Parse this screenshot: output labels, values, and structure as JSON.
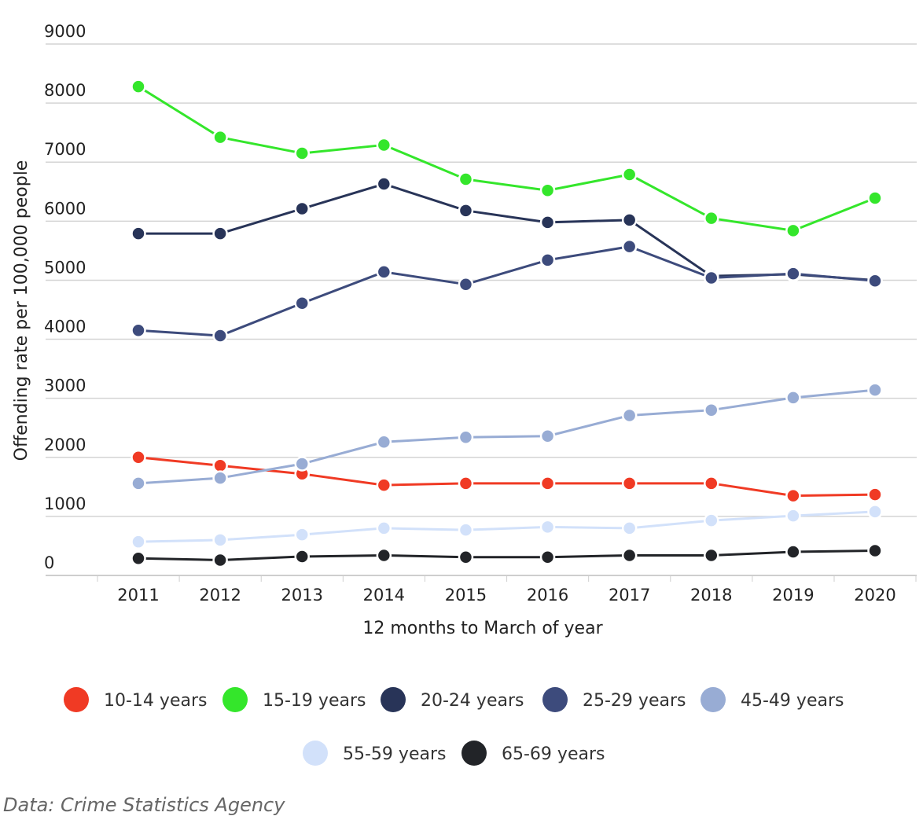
{
  "chart_data": {
    "type": "line",
    "x": [
      2011,
      2012,
      2013,
      2014,
      2015,
      2016,
      2017,
      2018,
      2019,
      2020
    ],
    "xlabel": "12 months to March of year",
    "ylabel": "Offending rate per 100,000 people",
    "ylim": [
      0,
      9000
    ],
    "yticks": [
      0,
      1000,
      2000,
      3000,
      4000,
      5000,
      6000,
      7000,
      8000,
      9000
    ],
    "grid": true,
    "legend_position": "bottom",
    "series": [
      {
        "name": "10-14 years",
        "color": "#f03a24",
        "values": [
          2000,
          1860,
          1720,
          1530,
          1560,
          1560,
          1560,
          1560,
          1350,
          1370
        ]
      },
      {
        "name": "15-19 years",
        "color": "#34e62b",
        "values": [
          8280,
          7420,
          7150,
          7290,
          6710,
          6520,
          6790,
          6050,
          5840,
          6390
        ]
      },
      {
        "name": "20-24 years",
        "color": "#283458",
        "values": [
          5790,
          5790,
          6210,
          6630,
          6180,
          5980,
          6020,
          5070,
          5100,
          5000
        ]
      },
      {
        "name": "25-29 years",
        "color": "#3d4b7c",
        "values": [
          4150,
          4060,
          4610,
          5140,
          4930,
          5340,
          5570,
          5040,
          5110,
          4990
        ]
      },
      {
        "name": "45-49 years",
        "color": "#98acd4",
        "values": [
          1560,
          1650,
          1890,
          2260,
          2340,
          2360,
          2710,
          2800,
          3010,
          3140
        ]
      },
      {
        "name": "55-59 years",
        "color": "#d2e1fa",
        "values": [
          570,
          600,
          690,
          800,
          770,
          820,
          800,
          930,
          1010,
          1080
        ]
      },
      {
        "name": "65-69 years",
        "color": "#222428",
        "values": [
          290,
          260,
          320,
          340,
          310,
          310,
          340,
          340,
          400,
          420
        ]
      }
    ]
  },
  "source": "Data: Crime Statistics Agency"
}
